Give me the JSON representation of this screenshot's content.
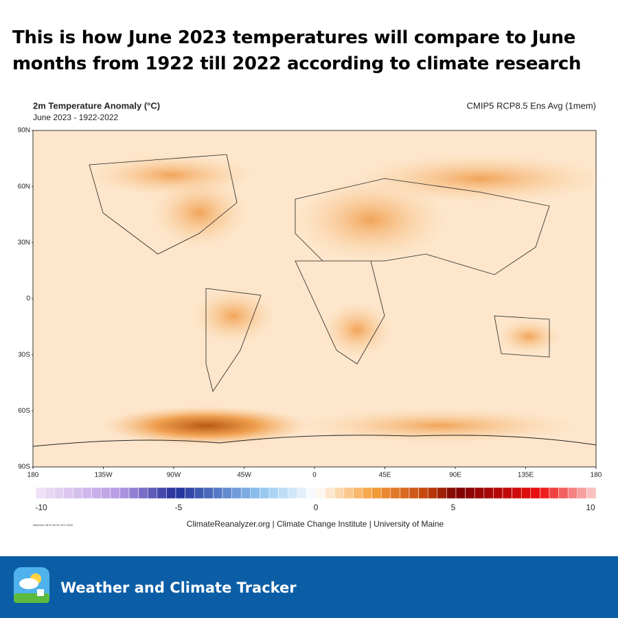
{
  "header": {
    "title": "This is how June 2023 temperatures will compare to June months from 1922 till 2022 according to climate research"
  },
  "map": {
    "title": "2m Temperature Anomaly (°C)",
    "subtitle": "June 2023 - 1922-2022",
    "model": "CMIP5 RCP8.5 Ens Avg (1mem)",
    "lat_labels": [
      "90N",
      "60N",
      "30N",
      "0",
      "30S",
      "60S",
      "90S"
    ],
    "lon_labels": [
      "180",
      "135W",
      "90W",
      "45W",
      "0",
      "45E",
      "90E",
      "135E",
      "180"
    ],
    "colorbar_ticks": [
      -10,
      -5,
      0,
      5,
      10
    ],
    "timestamp": "Wed Dec 28 07:51:32 UTC 2022",
    "credit": "ClimateReanalyzer.org | Climate Change Institute | University of Maine"
  },
  "footer": {
    "brand": "Weather and Climate Tracker"
  }
}
